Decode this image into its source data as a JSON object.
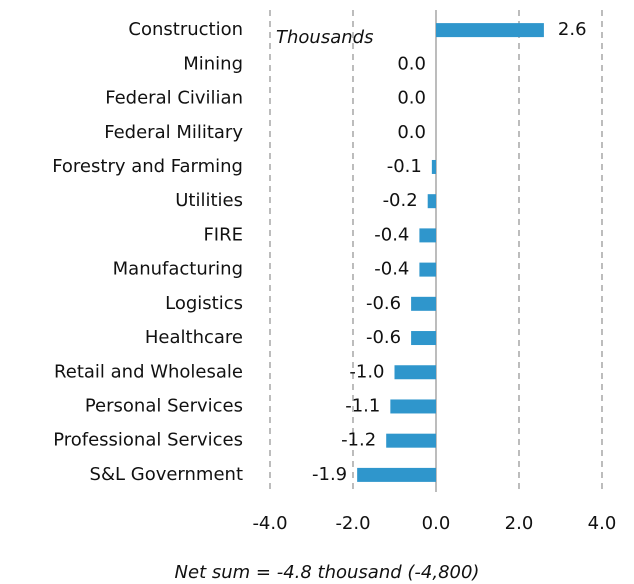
{
  "chart_data": {
    "type": "bar",
    "orientation": "horizontal",
    "annotation": "Thousands",
    "footnote": "Net sum = -4.8 thousand (-4,800)",
    "categories": [
      "Construction",
      "Mining",
      "Federal Civilian",
      "Federal Military",
      "Forestry and Farming",
      "Utilities",
      "FIRE",
      "Manufacturing",
      "Logistics",
      "Healthcare",
      "Retail and Wholesale",
      "Personal Services",
      "Professional Services",
      "S&L Government"
    ],
    "values": [
      2.6,
      0.0,
      0.0,
      0.0,
      -0.1,
      -0.2,
      -0.4,
      -0.4,
      -0.6,
      -0.6,
      -1.0,
      -1.1,
      -1.2,
      -1.9
    ],
    "value_labels": [
      "2.6",
      "0.0",
      "0.0",
      "0.0",
      "-0.1",
      "-0.2",
      "-0.4",
      "-0.4",
      "-0.6",
      "-0.6",
      "-1.0",
      "-1.1",
      "-1.2",
      "-1.9"
    ],
    "color": "#2f96cc",
    "xlim": [
      -4,
      4
    ],
    "xticks": [
      {
        "value": -4,
        "label": "-4.0"
      },
      {
        "value": -2,
        "label": "-2.0"
      },
      {
        "value": 0,
        "label": "0.0"
      },
      {
        "value": 2,
        "label": "2.0"
      },
      {
        "value": 4,
        "label": "4.0"
      }
    ],
    "grid": true
  }
}
